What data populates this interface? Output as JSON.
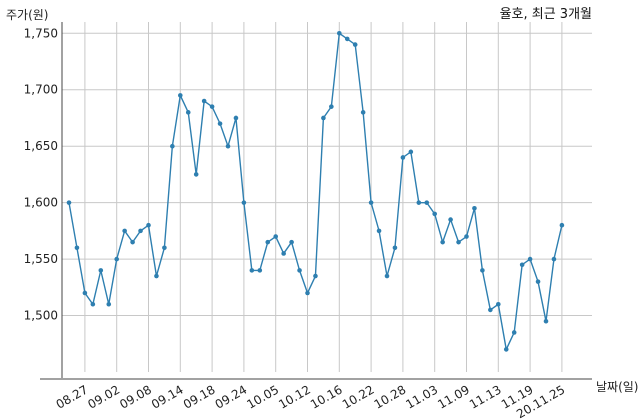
{
  "chart_data": {
    "type": "line",
    "title": "율호, 최근 3개월",
    "ylabel": "주가(원)",
    "xlabel": "날짜(일)",
    "ylim": [
      1450,
      1760
    ],
    "yticks": [
      1500,
      1550,
      1600,
      1650,
      1700,
      1750
    ],
    "ytick_labels": [
      "1,500",
      "1,550",
      "1,600",
      "1,650",
      "1,700",
      "1,750"
    ],
    "xtick_labels": [
      "08.27",
      "09.02",
      "09.08",
      "09.14",
      "09.18",
      "09.24",
      "10.05",
      "10.12",
      "10.16",
      "10.22",
      "10.28",
      "11.03",
      "11.09",
      "11.13",
      "11.19",
      "20.11.25"
    ],
    "xtick_index": [
      2,
      6,
      10,
      14,
      18,
      22,
      26,
      30,
      34,
      38,
      42,
      46,
      50,
      54,
      58,
      62
    ],
    "grid": true,
    "color": "#2e7fb0",
    "series": [
      {
        "name": "",
        "values": [
          1600,
          1560,
          1520,
          1510,
          1540,
          1510,
          1550,
          1575,
          1565,
          1575,
          1580,
          1535,
          1560,
          1650,
          1695,
          1680,
          1625,
          1690,
          1685,
          1670,
          1650,
          1675,
          1600,
          1540,
          1540,
          1565,
          1570,
          1555,
          1565,
          1540,
          1520,
          1535,
          1675,
          1685,
          1750,
          1745,
          1740,
          1680,
          1600,
          1575,
          1535,
          1560,
          1640,
          1645,
          1600,
          1600,
          1590,
          1565,
          1585,
          1565,
          1570,
          1595,
          1540,
          1505,
          1510,
          1470,
          1485,
          1545,
          1550,
          1530,
          1495,
          1550,
          1580
        ]
      }
    ]
  }
}
